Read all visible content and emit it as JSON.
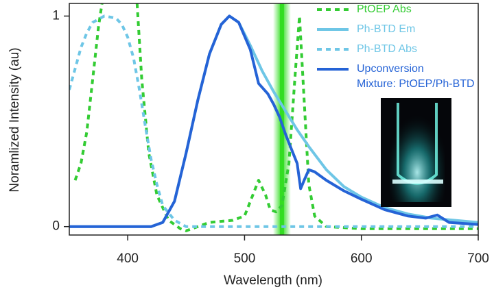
{
  "chart_data": {
    "type": "line",
    "xlabel": "Wavelength (nm)",
    "ylabel": "Noramlized Intensity (au)",
    "xlim": [
      350,
      700
    ],
    "ylim": [
      -0.04,
      1.06
    ],
    "xticks": [
      400,
      500,
      600,
      700
    ],
    "yticks": [
      0,
      1
    ],
    "band_x": 532,
    "band_color": "#33dd22",
    "annotation": "Mixture: PtOEP/Ph-BTD",
    "series": [
      {
        "name": "PtOEP Abs",
        "color": "#33cc33",
        "dash": true,
        "x": [
          355,
          360,
          365,
          370,
          375,
          378,
          393,
          408,
          412,
          418,
          425,
          435,
          445,
          450,
          460,
          470,
          490,
          500,
          505,
          512,
          518,
          522,
          527,
          532,
          538,
          543,
          547,
          551,
          555,
          560,
          570,
          600,
          700
        ],
        "values": [
          0.22,
          0.3,
          0.45,
          0.7,
          0.95,
          1.06,
          null,
          1.06,
          0.7,
          0.35,
          0.15,
          0.03,
          -0.01,
          -0.02,
          0.0,
          0.02,
          0.03,
          0.05,
          0.12,
          0.22,
          0.15,
          0.08,
          0.07,
          0.1,
          0.3,
          0.7,
          1.0,
          0.6,
          0.2,
          0.05,
          0.0,
          -0.01,
          -0.01
        ]
      },
      {
        "name": "Ph-BTD Em",
        "color": "#6ec6e6",
        "dash": false,
        "x": [
          350,
          420,
          430,
          440,
          450,
          460,
          470,
          480,
          487,
          495,
          505,
          515,
          525,
          535,
          545,
          555,
          570,
          585,
          600,
          620,
          640,
          660,
          700
        ],
        "values": [
          0,
          0,
          0.02,
          0.12,
          0.35,
          0.6,
          0.82,
          0.96,
          1.0,
          0.97,
          0.86,
          0.74,
          0.64,
          0.55,
          0.46,
          0.38,
          0.27,
          0.19,
          0.14,
          0.09,
          0.06,
          0.04,
          0.02
        ]
      },
      {
        "name": "Ph-BTD Abs",
        "color": "#6ec6e6",
        "dash": true,
        "x": [
          350,
          355,
          360,
          365,
          370,
          380,
          390,
          395,
          400,
          405,
          410,
          415,
          420,
          425,
          430,
          440,
          450,
          700
        ],
        "values": [
          0.65,
          0.75,
          0.85,
          0.92,
          0.97,
          1.0,
          0.99,
          0.96,
          0.9,
          0.8,
          0.65,
          0.48,
          0.32,
          0.2,
          0.1,
          0.03,
          0.0,
          0.0
        ]
      },
      {
        "name": "Upconversion",
        "color": "#2563d6",
        "dash": false,
        "x": [
          350,
          420,
          430,
          440,
          450,
          460,
          470,
          480,
          487,
          495,
          505,
          512,
          520,
          525,
          530,
          535,
          540,
          545,
          548,
          551,
          555,
          560,
          570,
          585,
          600,
          620,
          640,
          655,
          665,
          675,
          700
        ],
        "values": [
          0,
          0,
          0.02,
          0.12,
          0.35,
          0.6,
          0.82,
          0.96,
          1.0,
          0.97,
          0.84,
          0.68,
          0.63,
          0.58,
          0.52,
          0.44,
          0.37,
          0.3,
          0.18,
          0.22,
          0.27,
          0.26,
          0.22,
          0.17,
          0.13,
          0.08,
          0.05,
          0.04,
          0.055,
          0.02,
          0.01
        ]
      }
    ]
  }
}
